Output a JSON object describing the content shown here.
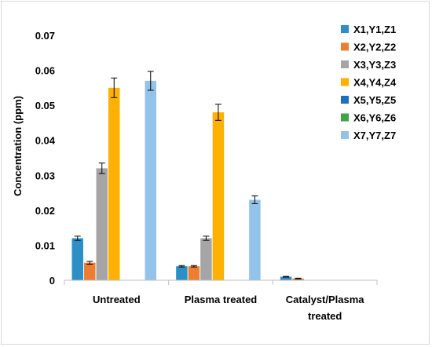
{
  "chart_data": {
    "type": "bar",
    "title": "",
    "xlabel": "",
    "ylabel": "Concentration (ppm)",
    "ylim": [
      0,
      0.07
    ],
    "yticks": [
      "0",
      "0.01",
      "0.02",
      "0.03",
      "0.04",
      "0.05",
      "0.06",
      "0.07"
    ],
    "grid": false,
    "legend_position": "right",
    "categories": [
      [
        "Untreated"
      ],
      [
        "Plasma treated"
      ],
      [
        "Catalyst/Plasma",
        "treated"
      ]
    ],
    "series": [
      {
        "name": "X1,Y1,Z1",
        "color": "#2e8fc7",
        "values": [
          0.012,
          0.004,
          0.001
        ],
        "errors": [
          0.0006,
          0.0002,
          0.0001
        ]
      },
      {
        "name": "X2,Y2,Z2",
        "color": "#ed7d31",
        "values": [
          0.005,
          0.004,
          0.0005
        ],
        "errors": [
          0.0004,
          0.0002,
          0.0001
        ]
      },
      {
        "name": "X3,Y3,Z3",
        "color": "#a5a5a5",
        "values": [
          0.032,
          0.012,
          0
        ],
        "errors": [
          0.0015,
          0.0006,
          0
        ]
      },
      {
        "name": "X4,Y4,Z4",
        "color": "#ffb000",
        "values": [
          0.055,
          0.048,
          0
        ],
        "errors": [
          0.0028,
          0.0023,
          0
        ]
      },
      {
        "name": "X5,Y5,Z5",
        "color": "#1f6fbf",
        "values": [
          0,
          0,
          0
        ],
        "errors": [
          0,
          0,
          0
        ]
      },
      {
        "name": "X6,Y6,Z6",
        "color": "#3ea543",
        "values": [
          0,
          0,
          0
        ],
        "errors": [
          0,
          0,
          0
        ]
      },
      {
        "name": "X7,Y7,Z7",
        "color": "#93c3e8",
        "values": [
          0.057,
          0.023,
          0
        ],
        "errors": [
          0.0027,
          0.0011,
          0
        ]
      }
    ]
  }
}
